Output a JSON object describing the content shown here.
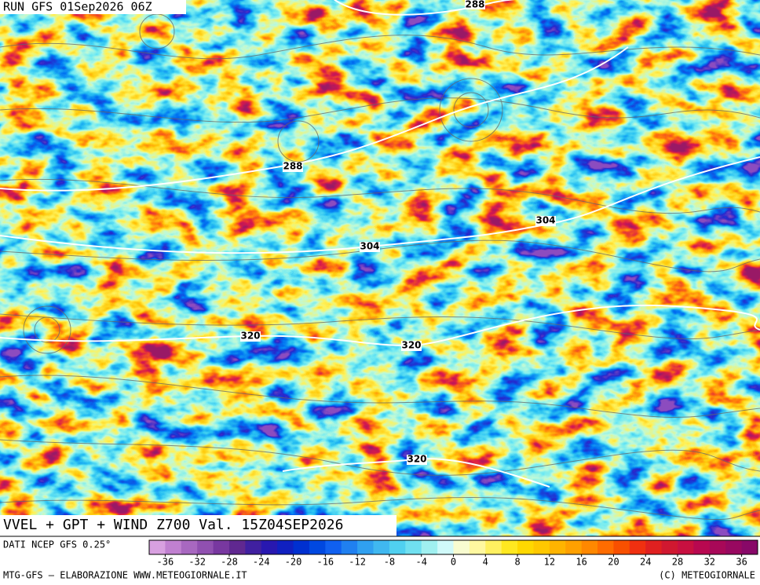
{
  "header": {
    "run": "RUN GFS 01Sep2026 06Z"
  },
  "map": {
    "contour_labels": [
      288,
      288,
      304,
      304,
      320,
      320,
      320
    ]
  },
  "title": "VVEL + GPT + WIND Z700 Val. 15Z04SEP2026",
  "legend": {
    "source": "DATI NCEP GFS 0.25°",
    "colors": [
      "#d8a0e0",
      "#c080d0",
      "#a868c0",
      "#9050b0",
      "#7838a0",
      "#602890",
      "#4020a0",
      "#2818b0",
      "#1020c0",
      "#0030d0",
      "#0048e0",
      "#1060f0",
      "#2080f0",
      "#30a0f0",
      "#40b8f0",
      "#50d0f0",
      "#70e0f0",
      "#a0f0f0",
      "#d0fafa",
      "#f8fcd0",
      "#fff8a0",
      "#fff060",
      "#ffe820",
      "#ffd800",
      "#ffc800",
      "#ffb400",
      "#ffa000",
      "#ff8800",
      "#ff6c00",
      "#f85000",
      "#f03010",
      "#e02020",
      "#d01830",
      "#c81040",
      "#b80850",
      "#a80858",
      "#980860",
      "#880868"
    ],
    "ticks": [
      -36,
      -32,
      -28,
      -24,
      -20,
      -16,
      -12,
      -8,
      -4,
      0,
      4,
      8,
      12,
      16,
      20,
      24,
      28,
      32,
      36
    ]
  },
  "footer": {
    "left": "MTG-GFS — ELABORAZIONE WWW.METEOGIORNALE.IT",
    "right": "(C) METEOGIORNALE"
  }
}
